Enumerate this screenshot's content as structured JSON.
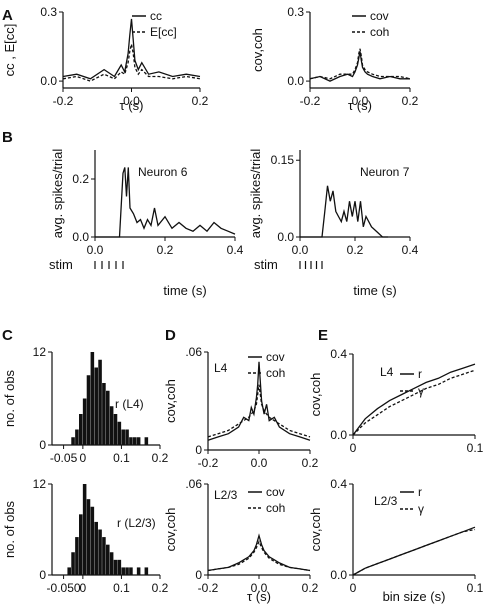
{
  "panel_labels": {
    "A": "A",
    "B": "B",
    "C": "C",
    "D": "D",
    "E": "E"
  },
  "chart_data": [
    {
      "id": "A1",
      "type": "line",
      "panel": "A",
      "xlabel": "τ (s)",
      "ylabel": "cc , E[cc]",
      "xlim": [
        -0.2,
        0.2
      ],
      "ylim": [
        -0.03,
        0.3
      ],
      "xticks": [
        -0.2,
        0.0,
        0.2
      ],
      "xtick_labels": [
        "-0.2",
        "0.0",
        "0.2"
      ],
      "yticks": [
        0.0,
        0.3
      ],
      "ytick_labels": [
        "0.0",
        "0.3"
      ],
      "legend_position": "top-right",
      "x": [
        -0.2,
        -0.16,
        -0.12,
        -0.08,
        -0.05,
        -0.03,
        -0.02,
        -0.01,
        -0.005,
        0.0,
        0.005,
        0.01,
        0.02,
        0.03,
        0.05,
        0.08,
        0.12,
        0.16,
        0.2
      ],
      "series": [
        {
          "name": "cc",
          "style": "solid",
          "values": [
            0.02,
            0.03,
            0.01,
            0.05,
            0.02,
            0.07,
            0.04,
            0.12,
            0.2,
            0.27,
            0.18,
            0.09,
            0.05,
            0.08,
            0.03,
            0.04,
            0.02,
            0.03,
            0.02
          ]
        },
        {
          "name": "E[cc]",
          "style": "dashed",
          "values": [
            0.01,
            0.02,
            0.0,
            0.03,
            0.01,
            0.04,
            0.03,
            0.08,
            0.13,
            0.16,
            0.12,
            0.06,
            0.03,
            0.05,
            0.02,
            0.02,
            0.01,
            0.02,
            0.01
          ]
        }
      ]
    },
    {
      "id": "A2",
      "type": "line",
      "panel": "A",
      "xlabel": "τ (s)",
      "ylabel": "cov,coh",
      "xlim": [
        -0.2,
        0.2
      ],
      "ylim": [
        -0.03,
        0.3
      ],
      "xticks": [
        -0.2,
        0.0,
        0.2
      ],
      "xtick_labels": [
        "-0.2",
        "0.0",
        "0.2"
      ],
      "yticks": [
        0.0,
        0.3
      ],
      "ytick_labels": [
        "0.0",
        "0.3"
      ],
      "legend_position": "top-right",
      "x": [
        -0.2,
        -0.16,
        -0.12,
        -0.08,
        -0.05,
        -0.03,
        -0.02,
        -0.01,
        -0.005,
        0.0,
        0.005,
        0.01,
        0.02,
        0.03,
        0.05,
        0.08,
        0.12,
        0.16,
        0.2
      ],
      "series": [
        {
          "name": "cov",
          "style": "solid",
          "values": [
            0.01,
            0.02,
            0.0,
            0.02,
            0.03,
            0.02,
            0.04,
            0.07,
            0.1,
            0.13,
            0.09,
            0.06,
            0.04,
            0.03,
            0.02,
            0.01,
            0.02,
            0.01,
            0.01
          ]
        },
        {
          "name": "coh",
          "style": "dashed",
          "values": [
            0.01,
            0.02,
            0.01,
            0.03,
            0.03,
            0.03,
            0.05,
            0.08,
            0.12,
            0.14,
            0.11,
            0.07,
            0.05,
            0.04,
            0.03,
            0.02,
            0.02,
            0.02,
            0.01
          ]
        }
      ]
    },
    {
      "id": "B1",
      "type": "line",
      "panel": "B",
      "annotation": "Neuron 6",
      "xlabel": "time (s)",
      "ylabel": "avg. spikes/trial",
      "xlim": [
        0,
        0.4
      ],
      "ylim": [
        0,
        0.3
      ],
      "xticks": [
        0.0,
        0.2,
        0.4
      ],
      "xtick_labels": [
        "0.0",
        "0.2",
        "0.4"
      ],
      "yticks": [
        0.0,
        0.2
      ],
      "ytick_labels": [
        "0.0",
        "0.2"
      ],
      "stim_label": "stim",
      "stim_times": [
        0.0,
        0.02,
        0.04,
        0.06,
        0.08
      ],
      "x": [
        0.0,
        0.06,
        0.07,
        0.08,
        0.085,
        0.09,
        0.095,
        0.1,
        0.11,
        0.12,
        0.13,
        0.14,
        0.15,
        0.16,
        0.17,
        0.18,
        0.2,
        0.22,
        0.24,
        0.26,
        0.28,
        0.3,
        0.32,
        0.34,
        0.36,
        0.38,
        0.4
      ],
      "values": [
        0.0,
        0.0,
        0.0,
        0.22,
        0.24,
        0.14,
        0.24,
        0.1,
        0.08,
        0.05,
        0.06,
        0.03,
        0.06,
        0.04,
        0.1,
        0.04,
        0.07,
        0.03,
        0.05,
        0.03,
        0.02,
        0.04,
        0.02,
        0.05,
        0.03,
        0.02,
        0.01
      ]
    },
    {
      "id": "B2",
      "type": "line",
      "panel": "B",
      "annotation": "Neuron 7",
      "xlabel": "time (s)",
      "ylabel": "avg. spikes/trial",
      "xlim": [
        0,
        0.4
      ],
      "ylim": [
        0,
        0.17
      ],
      "xticks": [
        0.0,
        0.2,
        0.4
      ],
      "xtick_labels": [
        "0.0",
        "0.2",
        "0.4"
      ],
      "yticks": [
        0.0,
        0.15
      ],
      "ytick_labels": [
        "0.0",
        "0.15"
      ],
      "stim_label": "stim",
      "stim_times": [
        0.0,
        0.02,
        0.04,
        0.06,
        0.08
      ],
      "x": [
        0.0,
        0.06,
        0.08,
        0.09,
        0.1,
        0.11,
        0.12,
        0.13,
        0.14,
        0.15,
        0.16,
        0.17,
        0.18,
        0.19,
        0.2,
        0.21,
        0.22,
        0.23,
        0.24,
        0.26,
        0.28,
        0.3,
        0.32
      ],
      "values": [
        0.0,
        0.0,
        0.0,
        0.05,
        0.1,
        0.07,
        0.09,
        0.05,
        0.04,
        0.03,
        0.05,
        0.03,
        0.07,
        0.04,
        0.07,
        0.03,
        0.07,
        0.02,
        0.04,
        0.02,
        0.01,
        0.0,
        0.0
      ]
    },
    {
      "id": "C1",
      "type": "bar",
      "panel": "C",
      "annotation": "r (L4)",
      "ylabel": "no. of obs",
      "xlim": [
        -0.08,
        0.2
      ],
      "ylim": [
        0,
        12
      ],
      "xticks": [
        -0.05,
        0.0,
        0.1,
        0.2
      ],
      "xtick_labels": [
        "-0.05",
        "0",
        "0.1",
        "0.2"
      ],
      "yticks": [
        0,
        12
      ],
      "ytick_labels": [
        "0",
        "12"
      ],
      "bin_starts": [
        -0.03,
        -0.02,
        -0.01,
        0.0,
        0.01,
        0.02,
        0.03,
        0.04,
        0.05,
        0.06,
        0.07,
        0.08,
        0.09,
        0.1,
        0.11,
        0.12,
        0.13,
        0.14,
        0.15,
        0.16
      ],
      "bin_width": 0.01,
      "values": [
        1,
        2,
        4,
        6,
        9,
        12,
        10,
        11,
        8,
        7,
        5,
        4,
        3,
        2,
        2,
        1,
        1,
        1,
        0,
        1
      ]
    },
    {
      "id": "C2",
      "type": "bar",
      "panel": "C",
      "annotation": "r (L2/3)",
      "xlabel": "",
      "ylabel": "no. of obs",
      "xlim": [
        -0.08,
        0.2
      ],
      "ylim": [
        0,
        12
      ],
      "xticks": [
        -0.05,
        0.0,
        0.1,
        0.2
      ],
      "xtick_labels": [
        "-0.050",
        "0",
        "0.1",
        "0.2"
      ],
      "yticks": [
        0,
        12
      ],
      "ytick_labels": [
        "0",
        "12"
      ],
      "bin_starts": [
        -0.04,
        -0.03,
        -0.02,
        -0.01,
        0.0,
        0.01,
        0.02,
        0.03,
        0.04,
        0.05,
        0.06,
        0.07,
        0.08,
        0.09,
        0.1,
        0.11,
        0.12,
        0.13,
        0.14,
        0.15,
        0.16
      ],
      "bin_width": 0.01,
      "values": [
        1,
        3,
        5,
        8,
        12,
        10,
        9,
        7,
        6,
        5,
        4,
        3,
        2,
        2,
        1,
        1,
        1,
        0,
        1,
        0,
        1
      ]
    },
    {
      "id": "D1",
      "type": "line",
      "panel": "D",
      "annotation": "L4",
      "ylabel": "cov,coh",
      "xlim": [
        -0.2,
        0.2
      ],
      "ylim": [
        0,
        0.06
      ],
      "xticks": [
        -0.2,
        0.0,
        0.2
      ],
      "xtick_labels": [
        "-0.2",
        "0.0",
        "0.2"
      ],
      "yticks": [
        0.0,
        0.06
      ],
      "ytick_labels": [
        "0",
        ".06"
      ],
      "legend_position": "top-right",
      "x": [
        -0.2,
        -0.16,
        -0.12,
        -0.08,
        -0.06,
        -0.04,
        -0.03,
        -0.02,
        -0.01,
        -0.005,
        0.0,
        0.005,
        0.01,
        0.02,
        0.03,
        0.04,
        0.06,
        0.08,
        0.12,
        0.16,
        0.2
      ],
      "series": [
        {
          "name": "cov",
          "style": "solid",
          "values": [
            0.006,
            0.008,
            0.01,
            0.014,
            0.02,
            0.018,
            0.026,
            0.022,
            0.032,
            0.04,
            0.054,
            0.042,
            0.03,
            0.022,
            0.028,
            0.018,
            0.02,
            0.014,
            0.01,
            0.008,
            0.006
          ]
        },
        {
          "name": "coh",
          "style": "dashed",
          "values": [
            0.008,
            0.01,
            0.012,
            0.016,
            0.018,
            0.02,
            0.022,
            0.024,
            0.028,
            0.034,
            0.04,
            0.034,
            0.028,
            0.024,
            0.022,
            0.02,
            0.018,
            0.016,
            0.012,
            0.01,
            0.008
          ]
        }
      ]
    },
    {
      "id": "D2",
      "type": "line",
      "panel": "D",
      "annotation": "L2/3",
      "xlabel": "τ (s)",
      "ylabel": "cov,coh",
      "xlim": [
        -0.2,
        0.2
      ],
      "ylim": [
        0,
        0.06
      ],
      "xticks": [
        -0.2,
        0.0,
        0.2
      ],
      "xtick_labels": [
        "-0.2",
        "0.0",
        "0.2"
      ],
      "yticks": [
        0.0,
        0.06
      ],
      "ytick_labels": [
        "0",
        ".06"
      ],
      "legend_position": "top-right",
      "x": [
        -0.2,
        -0.16,
        -0.12,
        -0.08,
        -0.06,
        -0.04,
        -0.02,
        -0.01,
        0.0,
        0.01,
        0.02,
        0.04,
        0.06,
        0.08,
        0.12,
        0.16,
        0.2
      ],
      "series": [
        {
          "name": "cov",
          "style": "solid",
          "values": [
            0.003,
            0.004,
            0.005,
            0.008,
            0.01,
            0.012,
            0.016,
            0.02,
            0.026,
            0.02,
            0.016,
            0.012,
            0.01,
            0.008,
            0.005,
            0.004,
            0.003
          ]
        },
        {
          "name": "coh",
          "style": "dashed",
          "values": [
            0.003,
            0.004,
            0.005,
            0.007,
            0.009,
            0.011,
            0.015,
            0.018,
            0.022,
            0.018,
            0.015,
            0.011,
            0.009,
            0.007,
            0.005,
            0.004,
            0.003
          ]
        }
      ]
    },
    {
      "id": "E1",
      "type": "line",
      "panel": "E",
      "annotation": "L4",
      "ylabel": "cov,coh",
      "xlim": [
        0,
        0.1
      ],
      "ylim": [
        0,
        0.4
      ],
      "xticks": [
        0,
        0.1
      ],
      "xtick_labels": [
        "0",
        "0.1"
      ],
      "yticks": [
        0.0,
        0.4
      ],
      "ytick_labels": [
        "0.0",
        "0.4"
      ],
      "legend_position": "right",
      "x": [
        0,
        0.01,
        0.02,
        0.03,
        0.04,
        0.05,
        0.06,
        0.07,
        0.08,
        0.09,
        0.1
      ],
      "series": [
        {
          "name": "r",
          "style": "solid",
          "values": [
            0.0,
            0.08,
            0.13,
            0.17,
            0.2,
            0.23,
            0.26,
            0.28,
            0.31,
            0.33,
            0.35
          ]
        },
        {
          "name": "γ",
          "style": "dashed",
          "values": [
            0.0,
            0.06,
            0.1,
            0.14,
            0.17,
            0.2,
            0.23,
            0.25,
            0.28,
            0.3,
            0.32
          ]
        }
      ]
    },
    {
      "id": "E2",
      "type": "line",
      "panel": "E",
      "annotation": "L2/3",
      "xlabel": "bin size (s)",
      "ylabel": "cov,coh",
      "xlim": [
        0,
        0.1
      ],
      "ylim": [
        0,
        0.4
      ],
      "xticks": [
        0,
        0.1
      ],
      "xtick_labels": [
        "0",
        "0.1"
      ],
      "yticks": [
        0.0,
        0.4
      ],
      "ytick_labels": [
        "0.0",
        "0.4"
      ],
      "legend_position": "top-right",
      "x": [
        0,
        0.01,
        0.02,
        0.03,
        0.04,
        0.05,
        0.06,
        0.07,
        0.08,
        0.09,
        0.1
      ],
      "series": [
        {
          "name": "r",
          "style": "solid",
          "values": [
            0.0,
            0.03,
            0.05,
            0.07,
            0.09,
            0.11,
            0.13,
            0.15,
            0.17,
            0.19,
            0.21
          ]
        },
        {
          "name": "γ",
          "style": "dashed",
          "values": [
            0.0,
            0.03,
            0.05,
            0.07,
            0.09,
            0.11,
            0.13,
            0.15,
            0.17,
            0.19,
            0.2
          ]
        }
      ]
    }
  ]
}
